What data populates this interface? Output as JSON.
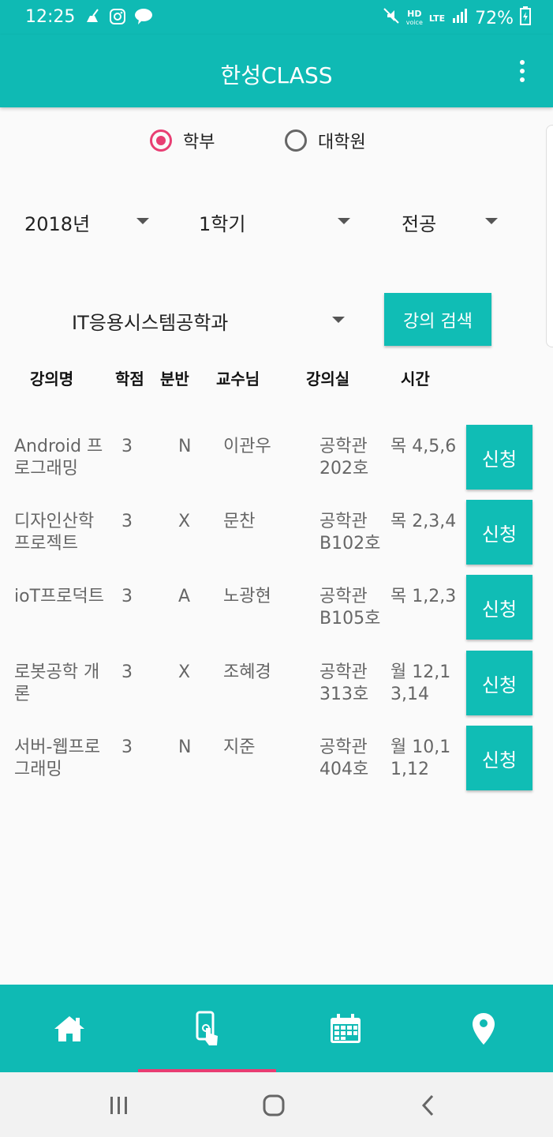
{
  "status_bar": {
    "time": "12:25",
    "network": "HD",
    "network_sub": "voice",
    "lte": "LTE",
    "battery": "72%"
  },
  "app_bar": {
    "title": "한성CLASS"
  },
  "program": {
    "options": [
      "학부",
      "대학원"
    ],
    "selected": "학부"
  },
  "filters": {
    "year": "2018년",
    "semester": "1학기",
    "category": "전공",
    "department": "IT응용시스템공학과"
  },
  "search_button": "강의 검색",
  "table": {
    "headers": [
      "강의명",
      "학점",
      "분반",
      "교수님",
      "강의실",
      "시간"
    ],
    "rows": [
      {
        "name": "Android 프로그래밍",
        "credit": "3",
        "section": "N",
        "professor": "이관우",
        "room": "공학관 202호",
        "time": "목 4,5,6"
      },
      {
        "name": "디자인산학 프로젝트",
        "credit": "3",
        "section": "X",
        "professor": "문찬",
        "room": "공학관 B102호",
        "time": "목 2,3,4"
      },
      {
        "name": "ioT프로덕트",
        "credit": "3",
        "section": "A",
        "professor": "노광현",
        "room": "공학관 B105호",
        "time": "목 1,2,3"
      },
      {
        "name": "로봇공학 개론",
        "credit": "3",
        "section": "X",
        "professor": "조혜경",
        "room": "공학관 313호",
        "time": "월 12,13,14"
      },
      {
        "name": "서버-웹프로그래밍",
        "credit": "3",
        "section": "N",
        "professor": "지준",
        "room": "공학관 404호",
        "time": "월 10,11,12"
      }
    ],
    "apply_label": "신청"
  },
  "bottom_nav": {
    "items": [
      "home-icon",
      "touch-phone-icon",
      "calendar-icon",
      "location-pin-icon"
    ],
    "selected_index": 1
  },
  "colors": {
    "primary": "#0fbab4",
    "accent": "#e83e73"
  }
}
